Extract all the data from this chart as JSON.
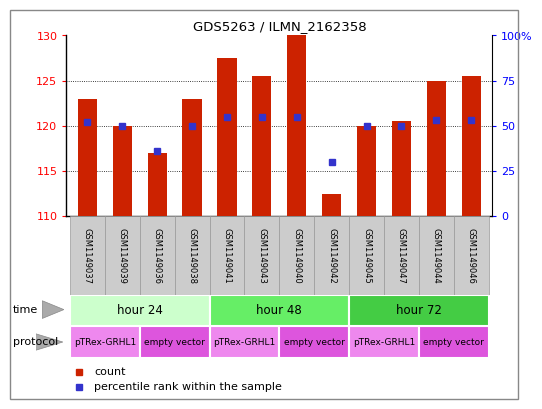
{
  "title": "GDS5263 / ILMN_2162358",
  "samples": [
    "GSM1149037",
    "GSM1149039",
    "GSM1149036",
    "GSM1149038",
    "GSM1149041",
    "GSM1149043",
    "GSM1149040",
    "GSM1149042",
    "GSM1149045",
    "GSM1149047",
    "GSM1149044",
    "GSM1149046"
  ],
  "counts": [
    123,
    120,
    117,
    123,
    127.5,
    125.5,
    130,
    112.5,
    120,
    120.5,
    125,
    125.5
  ],
  "percentile_ranks": [
    52,
    50,
    36,
    50,
    55,
    55,
    55,
    30,
    50,
    50,
    53,
    53
  ],
  "ylim_left": [
    110,
    130
  ],
  "ylim_right": [
    0,
    100
  ],
  "yticks_left": [
    110,
    115,
    120,
    125,
    130
  ],
  "yticks_right": [
    0,
    25,
    50,
    75,
    100
  ],
  "ytick_labels_right": [
    "0",
    "25",
    "50",
    "75",
    "100%"
  ],
  "bar_color": "#cc2200",
  "dot_color": "#3333cc",
  "time_groups": [
    {
      "label": "hour 24",
      "start": 0,
      "end": 4,
      "color": "#ccffcc"
    },
    {
      "label": "hour 48",
      "start": 4,
      "end": 8,
      "color": "#66ee66"
    },
    {
      "label": "hour 72",
      "start": 8,
      "end": 12,
      "color": "#44cc44"
    }
  ],
  "protocol_groups": [
    {
      "label": "pTRex-GRHL1",
      "start": 0,
      "end": 2,
      "color": "#ee88ee"
    },
    {
      "label": "empty vector",
      "start": 2,
      "end": 4,
      "color": "#dd55dd"
    },
    {
      "label": "pTRex-GRHL1",
      "start": 4,
      "end": 6,
      "color": "#ee88ee"
    },
    {
      "label": "empty vector",
      "start": 6,
      "end": 8,
      "color": "#dd55dd"
    },
    {
      "label": "pTRex-GRHL1",
      "start": 8,
      "end": 10,
      "color": "#ee88ee"
    },
    {
      "label": "empty vector",
      "start": 10,
      "end": 12,
      "color": "#dd55dd"
    }
  ],
  "time_row_label": "time",
  "protocol_row_label": "protocol",
  "legend_count_label": "count",
  "legend_percentile_label": "percentile rank within the sample",
  "bar_width": 0.55,
  "sample_box_color": "#cccccc",
  "sample_box_border": "#999999",
  "fig_border_color": "#888888"
}
